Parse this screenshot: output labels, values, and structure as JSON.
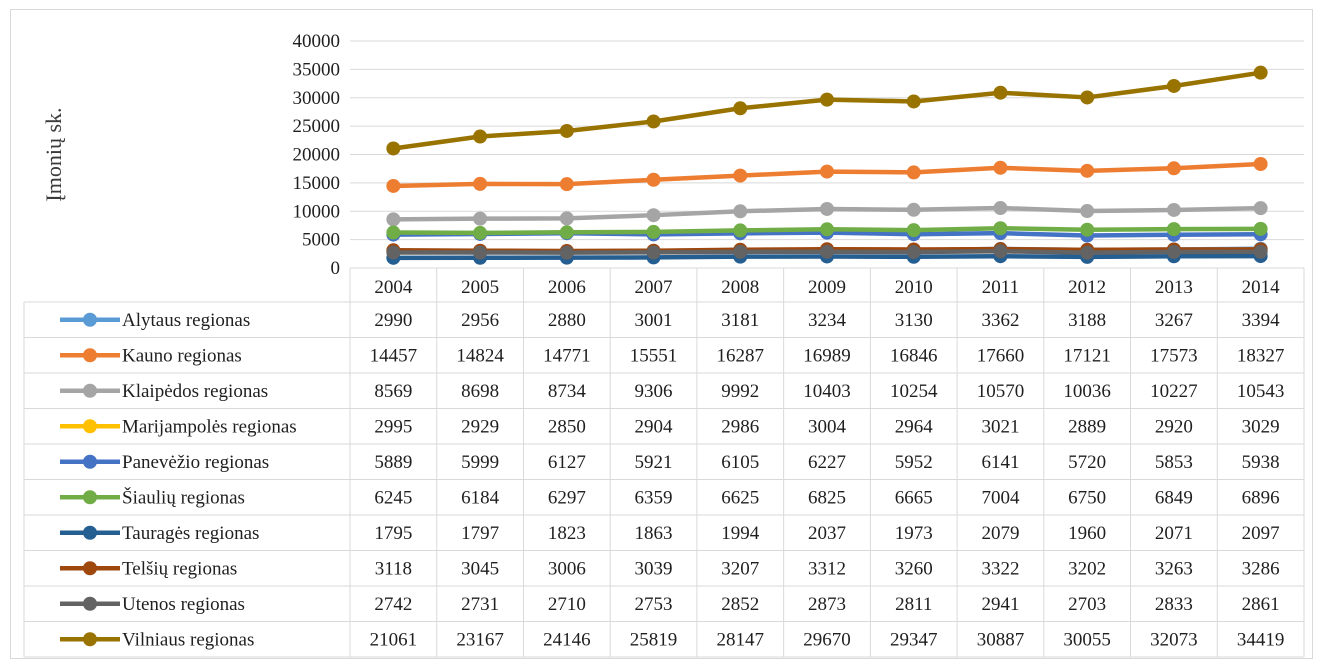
{
  "chart_data": {
    "type": "line",
    "ylabel": "Įmonių sk.",
    "ylim": [
      0,
      40000
    ],
    "yticks": [
      0,
      5000,
      10000,
      15000,
      20000,
      25000,
      30000,
      35000,
      40000
    ],
    "grid": true,
    "legend": "data-table",
    "categories": [
      "2004",
      "2005",
      "2006",
      "2007",
      "2008",
      "2009",
      "2010",
      "2011",
      "2012",
      "2013",
      "2014"
    ],
    "series": [
      {
        "name": "Alytaus regionas",
        "color": "#5b9bd5",
        "values": [
          2990,
          2956,
          2880,
          3001,
          3181,
          3234,
          3130,
          3362,
          3188,
          3267,
          3394
        ]
      },
      {
        "name": "Kauno regionas",
        "color": "#ed7d31",
        "values": [
          14457,
          14824,
          14771,
          15551,
          16287,
          16989,
          16846,
          17660,
          17121,
          17573,
          18327
        ]
      },
      {
        "name": "Klaipėdos regionas",
        "color": "#a5a5a5",
        "values": [
          8569,
          8698,
          8734,
          9306,
          9992,
          10403,
          10254,
          10570,
          10036,
          10227,
          10543
        ]
      },
      {
        "name": "Marijampolės regionas",
        "color": "#ffc000",
        "values": [
          2995,
          2929,
          2850,
          2904,
          2986,
          3004,
          2964,
          3021,
          2889,
          2920,
          3029
        ]
      },
      {
        "name": "Panevėžio regionas",
        "color": "#4472c4",
        "values": [
          5889,
          5999,
          6127,
          5921,
          6105,
          6227,
          5952,
          6141,
          5720,
          5853,
          5938
        ]
      },
      {
        "name": "Šiaulių regionas",
        "color": "#70ad47",
        "values": [
          6245,
          6184,
          6297,
          6359,
          6625,
          6825,
          6665,
          7004,
          6750,
          6849,
          6896
        ]
      },
      {
        "name": "Tauragės regionas",
        "color": "#255e91",
        "values": [
          1795,
          1797,
          1823,
          1863,
          1994,
          2037,
          1973,
          2079,
          1960,
          2071,
          2097
        ]
      },
      {
        "name": "Telšių regionas",
        "color": "#9e480e",
        "values": [
          3118,
          3045,
          3006,
          3039,
          3207,
          3312,
          3260,
          3322,
          3202,
          3263,
          3286
        ]
      },
      {
        "name": "Utenos regionas",
        "color": "#636363",
        "values": [
          2742,
          2731,
          2710,
          2753,
          2852,
          2873,
          2811,
          2941,
          2703,
          2833,
          2861
        ]
      },
      {
        "name": "Vilniaus regionas",
        "color": "#997300",
        "values": [
          21061,
          23167,
          24146,
          25819,
          28147,
          29670,
          29347,
          30887,
          30055,
          32073,
          34419
        ]
      }
    ]
  }
}
